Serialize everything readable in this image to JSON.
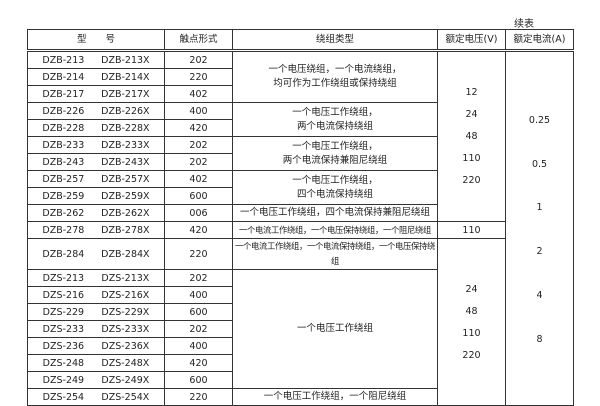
{
  "continued_label": "续表",
  "headers": {
    "model": "型　　号",
    "contact": "触点形式",
    "winding": "绕组类型",
    "voltage": "额定电压(V)",
    "current": "额定电流(A)"
  },
  "rows": [
    {
      "a": "DZB-213",
      "b": "DZB-213X",
      "c": "202"
    },
    {
      "a": "DZB-214",
      "b": "DZB-214X",
      "c": "220"
    },
    {
      "a": "DZB-217",
      "b": "DZB-217X",
      "c": "402"
    },
    {
      "a": "DZB-226",
      "b": "DZB-226X",
      "c": "400"
    },
    {
      "a": "DZB-228",
      "b": "DZB-228X",
      "c": "420"
    },
    {
      "a": "DZB-233",
      "b": "DZB-233X",
      "c": "202"
    },
    {
      "a": "DZB-243",
      "b": "DZB-243X",
      "c": "202"
    },
    {
      "a": "DZB-257",
      "b": "DZB-257X",
      "c": "402"
    },
    {
      "a": "DZB-259",
      "b": "DZB-259X",
      "c": "600"
    },
    {
      "a": "DZB-262",
      "b": "DZB-262X",
      "c": "006"
    },
    {
      "a": "DZB-278",
      "b": "DZB-278X",
      "c": "420"
    },
    {
      "a": "DZB-284",
      "b": "DZB-284X",
      "c": "220"
    },
    {
      "a": "DZS-213",
      "b": "DZS-213X",
      "c": "202"
    },
    {
      "a": "DZS-216",
      "b": "DZS-216X",
      "c": "400"
    },
    {
      "a": "DZS-229",
      "b": "DZS-229X",
      "c": "600"
    },
    {
      "a": "DZS-233",
      "b": "DZS-233X",
      "c": "202"
    },
    {
      "a": "DZS-236",
      "b": "DZS-236X",
      "c": "400"
    },
    {
      "a": "DZS-248",
      "b": "DZS-248X",
      "c": "420"
    },
    {
      "a": "DZS-249",
      "b": "DZS-249X",
      "c": "600"
    },
    {
      "a": "DZS-254",
      "b": "DZS-254X",
      "c": "220"
    }
  ],
  "windings": [
    {
      "l1": "一个电压绕组，一个电流绕组，",
      "l2": "均可作为工作绕组或保持绕组"
    },
    {
      "l1": "一个电压工作绕组，",
      "l2": "两个电流保持绕组"
    },
    {
      "l1": "一个电压工作绕组，",
      "l2": "两个电流保持兼阻尼绕组"
    },
    {
      "l1": "一个电压工作绕组，",
      "l2": "四个电流保持绕组"
    },
    {
      "l1": "一个电压工作绕组，四个电流保持兼阻尼绕组"
    },
    {
      "l1": "一个电流工作绕组，一个电压保持绕组，一个阻尼绕组"
    },
    {
      "l1": "一个电流工作绕组，一个电流保持绕组，一个电压保持绕组"
    },
    {
      "l1": "一个电压工作绕组"
    },
    {
      "l1": "一个电压工作绕组，一个阻尼绕组"
    }
  ],
  "voltage_groups": [
    [
      "12",
      "24",
      "48",
      "110",
      "220"
    ],
    [
      "110"
    ],
    [
      "24",
      "48",
      "110",
      "220"
    ]
  ],
  "currents": [
    "0.25",
    "0.5",
    "1",
    "2",
    "4",
    "8"
  ]
}
